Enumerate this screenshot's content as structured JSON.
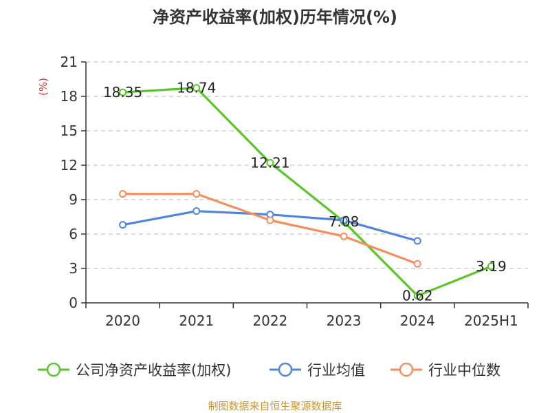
{
  "chart_data": {
    "type": "line",
    "title": "净资产收益率(加权)历年情况(%)",
    "ylabel": "(%)",
    "categories": [
      "2020",
      "2021",
      "2022",
      "2023",
      "2024",
      "2025H1"
    ],
    "yticks": [
      "0",
      "3",
      "6",
      "9",
      "12",
      "15",
      "18",
      "21"
    ],
    "ylim": [
      0,
      21
    ],
    "grid": true,
    "legend_position": "bottom",
    "series": [
      {
        "name": "公司净资产收益率(加权)",
        "color": "#5ac42a",
        "values": [
          18.35,
          18.74,
          12.21,
          7.08,
          0.62,
          3.19
        ],
        "labels": [
          "18.35",
          "18.74",
          "12.21",
          "7.08",
          "0.62",
          "3.19"
        ]
      },
      {
        "name": "行业均值",
        "color": "#4f86dc",
        "values": [
          6.8,
          8.0,
          7.7,
          7.2,
          5.4,
          null
        ]
      },
      {
        "name": "行业中位数",
        "color": "#f58d5c",
        "values": [
          9.5,
          9.5,
          7.2,
          5.8,
          3.4,
          null
        ]
      }
    ],
    "source": "制图数据来自恒生聚源数据库"
  }
}
